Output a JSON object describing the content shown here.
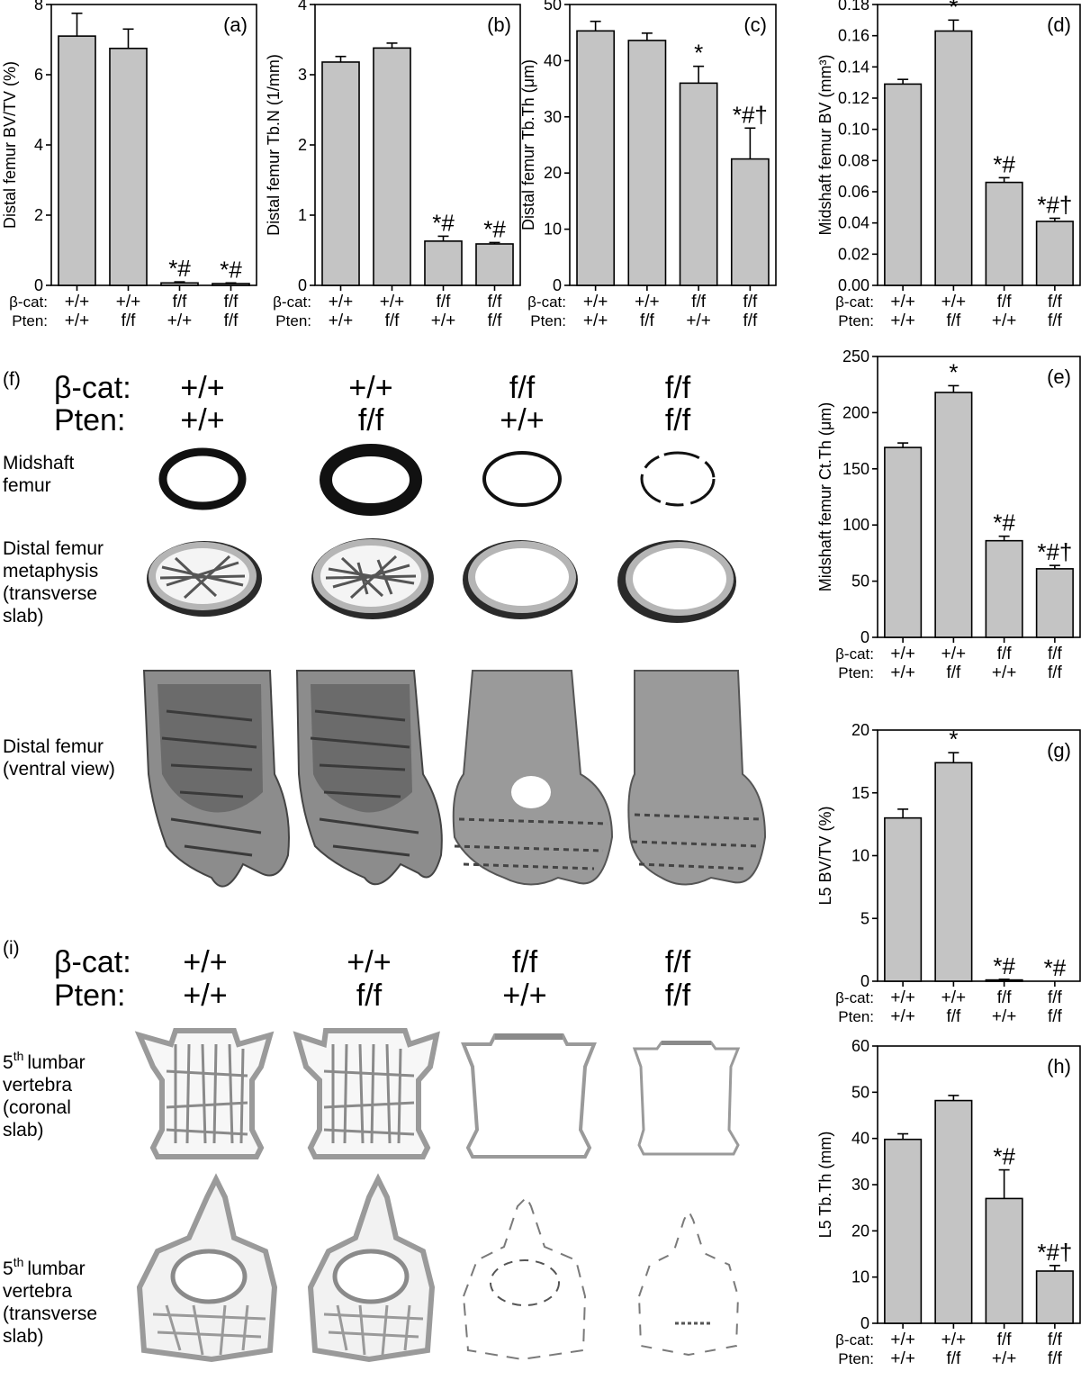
{
  "genotype_header": {
    "beta_cat_label": "β-cat:",
    "pten_label": "Pten:"
  },
  "genotypes": {
    "beta_cat": [
      "+/+",
      "+/+",
      "f/f",
      "f/f"
    ],
    "pten": [
      "+/+",
      "f/f",
      "+/+",
      "f/f"
    ]
  },
  "image_panels": {
    "f": {
      "letter": "(f)",
      "rows": [
        {
          "lines": [
            "Midshaft",
            "femur"
          ]
        },
        {
          "lines": [
            "Distal femur",
            "metaphysis",
            "(transverse",
            "slab)"
          ]
        },
        {
          "lines": [
            "Distal femur",
            "(ventral view)"
          ]
        }
      ]
    },
    "i": {
      "letter": "(i)",
      "rows": [
        {
          "sup": "th",
          "lines": [
            "5",
            "lumbar",
            "vertebra",
            "(coronal",
            "slab)"
          ]
        },
        {
          "sup": "th",
          "lines": [
            "5",
            "lumbar",
            "vertebra",
            "(transverse",
            "slab)"
          ]
        }
      ]
    }
  },
  "chart_data": [
    {
      "id": "a",
      "type": "bar",
      "letter": "(a)",
      "ylabel": "Distal femur BV/TV (%)",
      "ylim": [
        0,
        8
      ],
      "yticks": [
        "0",
        "2",
        "4",
        "6",
        "8"
      ],
      "values": [
        7.1,
        6.75,
        0.07,
        0.05
      ],
      "errors": [
        0.65,
        0.55,
        0.03,
        0.02
      ],
      "annotations": [
        "",
        "",
        "*#",
        "*#"
      ]
    },
    {
      "id": "b",
      "type": "bar",
      "letter": "(b)",
      "ylabel": "Distal femur Tb.N (1/mm)",
      "ylim": [
        0,
        4
      ],
      "yticks": [
        "0",
        "1",
        "2",
        "3",
        "4"
      ],
      "values": [
        3.18,
        3.38,
        0.63,
        0.59
      ],
      "errors": [
        0.08,
        0.07,
        0.07,
        0.02
      ],
      "annotations": [
        "",
        "",
        "*#",
        "*#"
      ]
    },
    {
      "id": "c",
      "type": "bar",
      "letter": "(c)",
      "ylabel": "Distal femur Tb.Th (μm)",
      "ylim": [
        0,
        50
      ],
      "yticks": [
        "0",
        "10",
        "20",
        "30",
        "40",
        "50"
      ],
      "values": [
        45.3,
        43.6,
        36.0,
        22.5
      ],
      "errors": [
        1.7,
        1.3,
        3.0,
        5.5
      ],
      "annotations": [
        "",
        "",
        "*",
        "*#†"
      ]
    },
    {
      "id": "d",
      "type": "bar",
      "letter": "(d)",
      "ylabel": "Midshaft femur BV (mm³)",
      "ylim": [
        0,
        0.18
      ],
      "yticks": [
        "0.00",
        "0.02",
        "0.04",
        "0.06",
        "0.08",
        "0.10",
        "0.12",
        "0.14",
        "0.16",
        "0.18"
      ],
      "values": [
        0.129,
        0.163,
        0.066,
        0.041
      ],
      "errors": [
        0.003,
        0.007,
        0.003,
        0.002
      ],
      "annotations": [
        "",
        "*",
        "*#",
        "*#†"
      ]
    },
    {
      "id": "e",
      "type": "bar",
      "letter": "(e)",
      "ylabel": "Midshaft femur Ct.Th (μm)",
      "ylim": [
        0,
        250
      ],
      "yticks": [
        "0",
        "50",
        "100",
        "150",
        "200",
        "250"
      ],
      "values": [
        169,
        218,
        86,
        61
      ],
      "errors": [
        4,
        6,
        4,
        3
      ],
      "annotations": [
        "",
        "*",
        "*#",
        "*#†"
      ]
    },
    {
      "id": "g",
      "type": "bar",
      "letter": "(g)",
      "ylabel": "L5 BV/TV (%)",
      "ylim": [
        0,
        20
      ],
      "yticks": [
        "0",
        "5",
        "10",
        "15",
        "20"
      ],
      "values": [
        13.0,
        17.4,
        0.1,
        0.0
      ],
      "errors": [
        0.7,
        0.8,
        0.05,
        0.0
      ],
      "annotations": [
        "",
        "*",
        "*#",
        "*#"
      ]
    },
    {
      "id": "h",
      "type": "bar",
      "letter": "(h)",
      "ylabel": "L5 Tb.Th (mm)",
      "ylim": [
        0,
        60
      ],
      "yticks": [
        "0",
        "10",
        "20",
        "30",
        "40",
        "50",
        "60"
      ],
      "values": [
        39.8,
        48.2,
        27.0,
        11.3
      ],
      "errors": [
        1.2,
        1.1,
        6.2,
        1.2
      ],
      "annotations": [
        "",
        "",
        "*#",
        "*#†"
      ]
    }
  ]
}
